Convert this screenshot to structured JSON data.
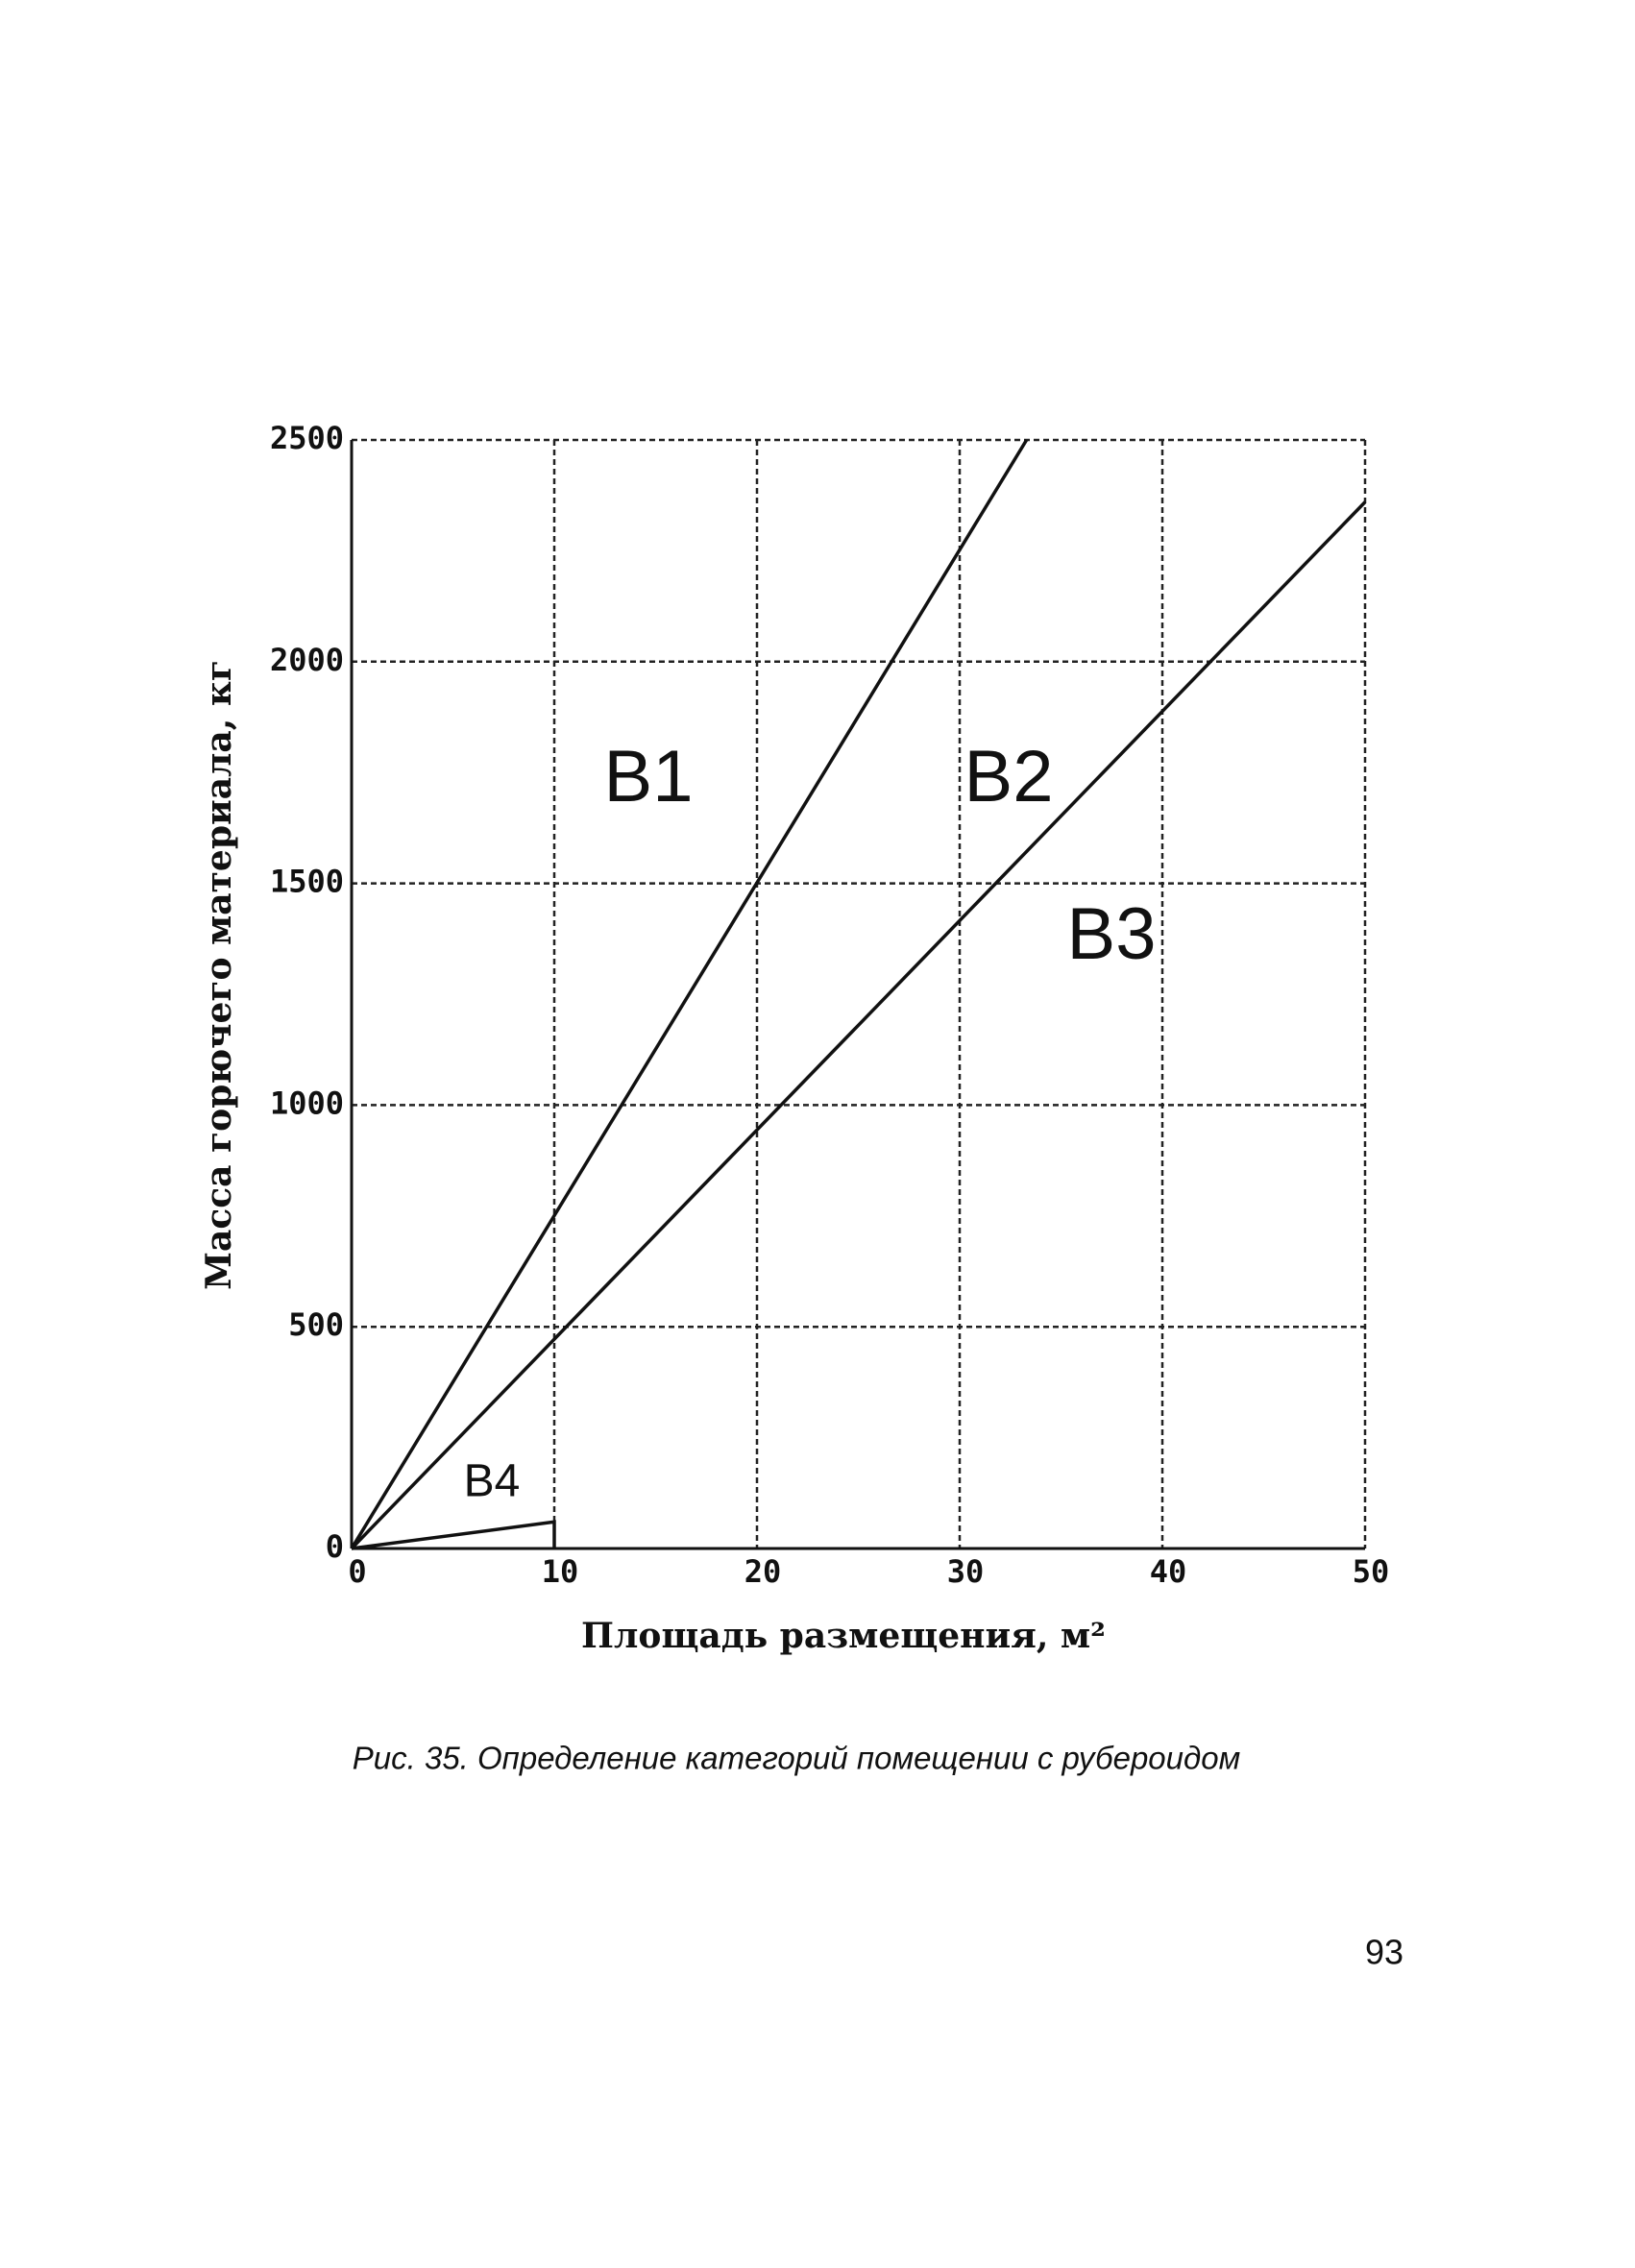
{
  "chart_data": {
    "type": "line",
    "xlabel": "Площадь размещения, м²",
    "ylabel": "Масса горючего материала, кг",
    "xlim": [
      0,
      50
    ],
    "ylim": [
      0,
      2500
    ],
    "xticks": [
      0,
      10,
      20,
      30,
      40,
      50
    ],
    "yticks": [
      0,
      500,
      1000,
      1500,
      2000,
      2500
    ],
    "grid": true,
    "series": [
      {
        "color": "#111111",
        "x": [
          0,
          33.3
        ],
        "values": [
          0,
          2500
        ]
      },
      {
        "color": "#111111",
        "x": [
          0,
          50
        ],
        "values": [
          0,
          2360
        ]
      },
      {
        "color": "#111111",
        "x": [
          0,
          10,
          10
        ],
        "values": [
          0,
          60,
          0
        ]
      }
    ],
    "annotations": [
      "B1",
      "B2",
      "B3",
      "B4"
    ]
  },
  "caption": "Рис. 35. Определение категорий помещении с рубероидом",
  "page_number": "93"
}
